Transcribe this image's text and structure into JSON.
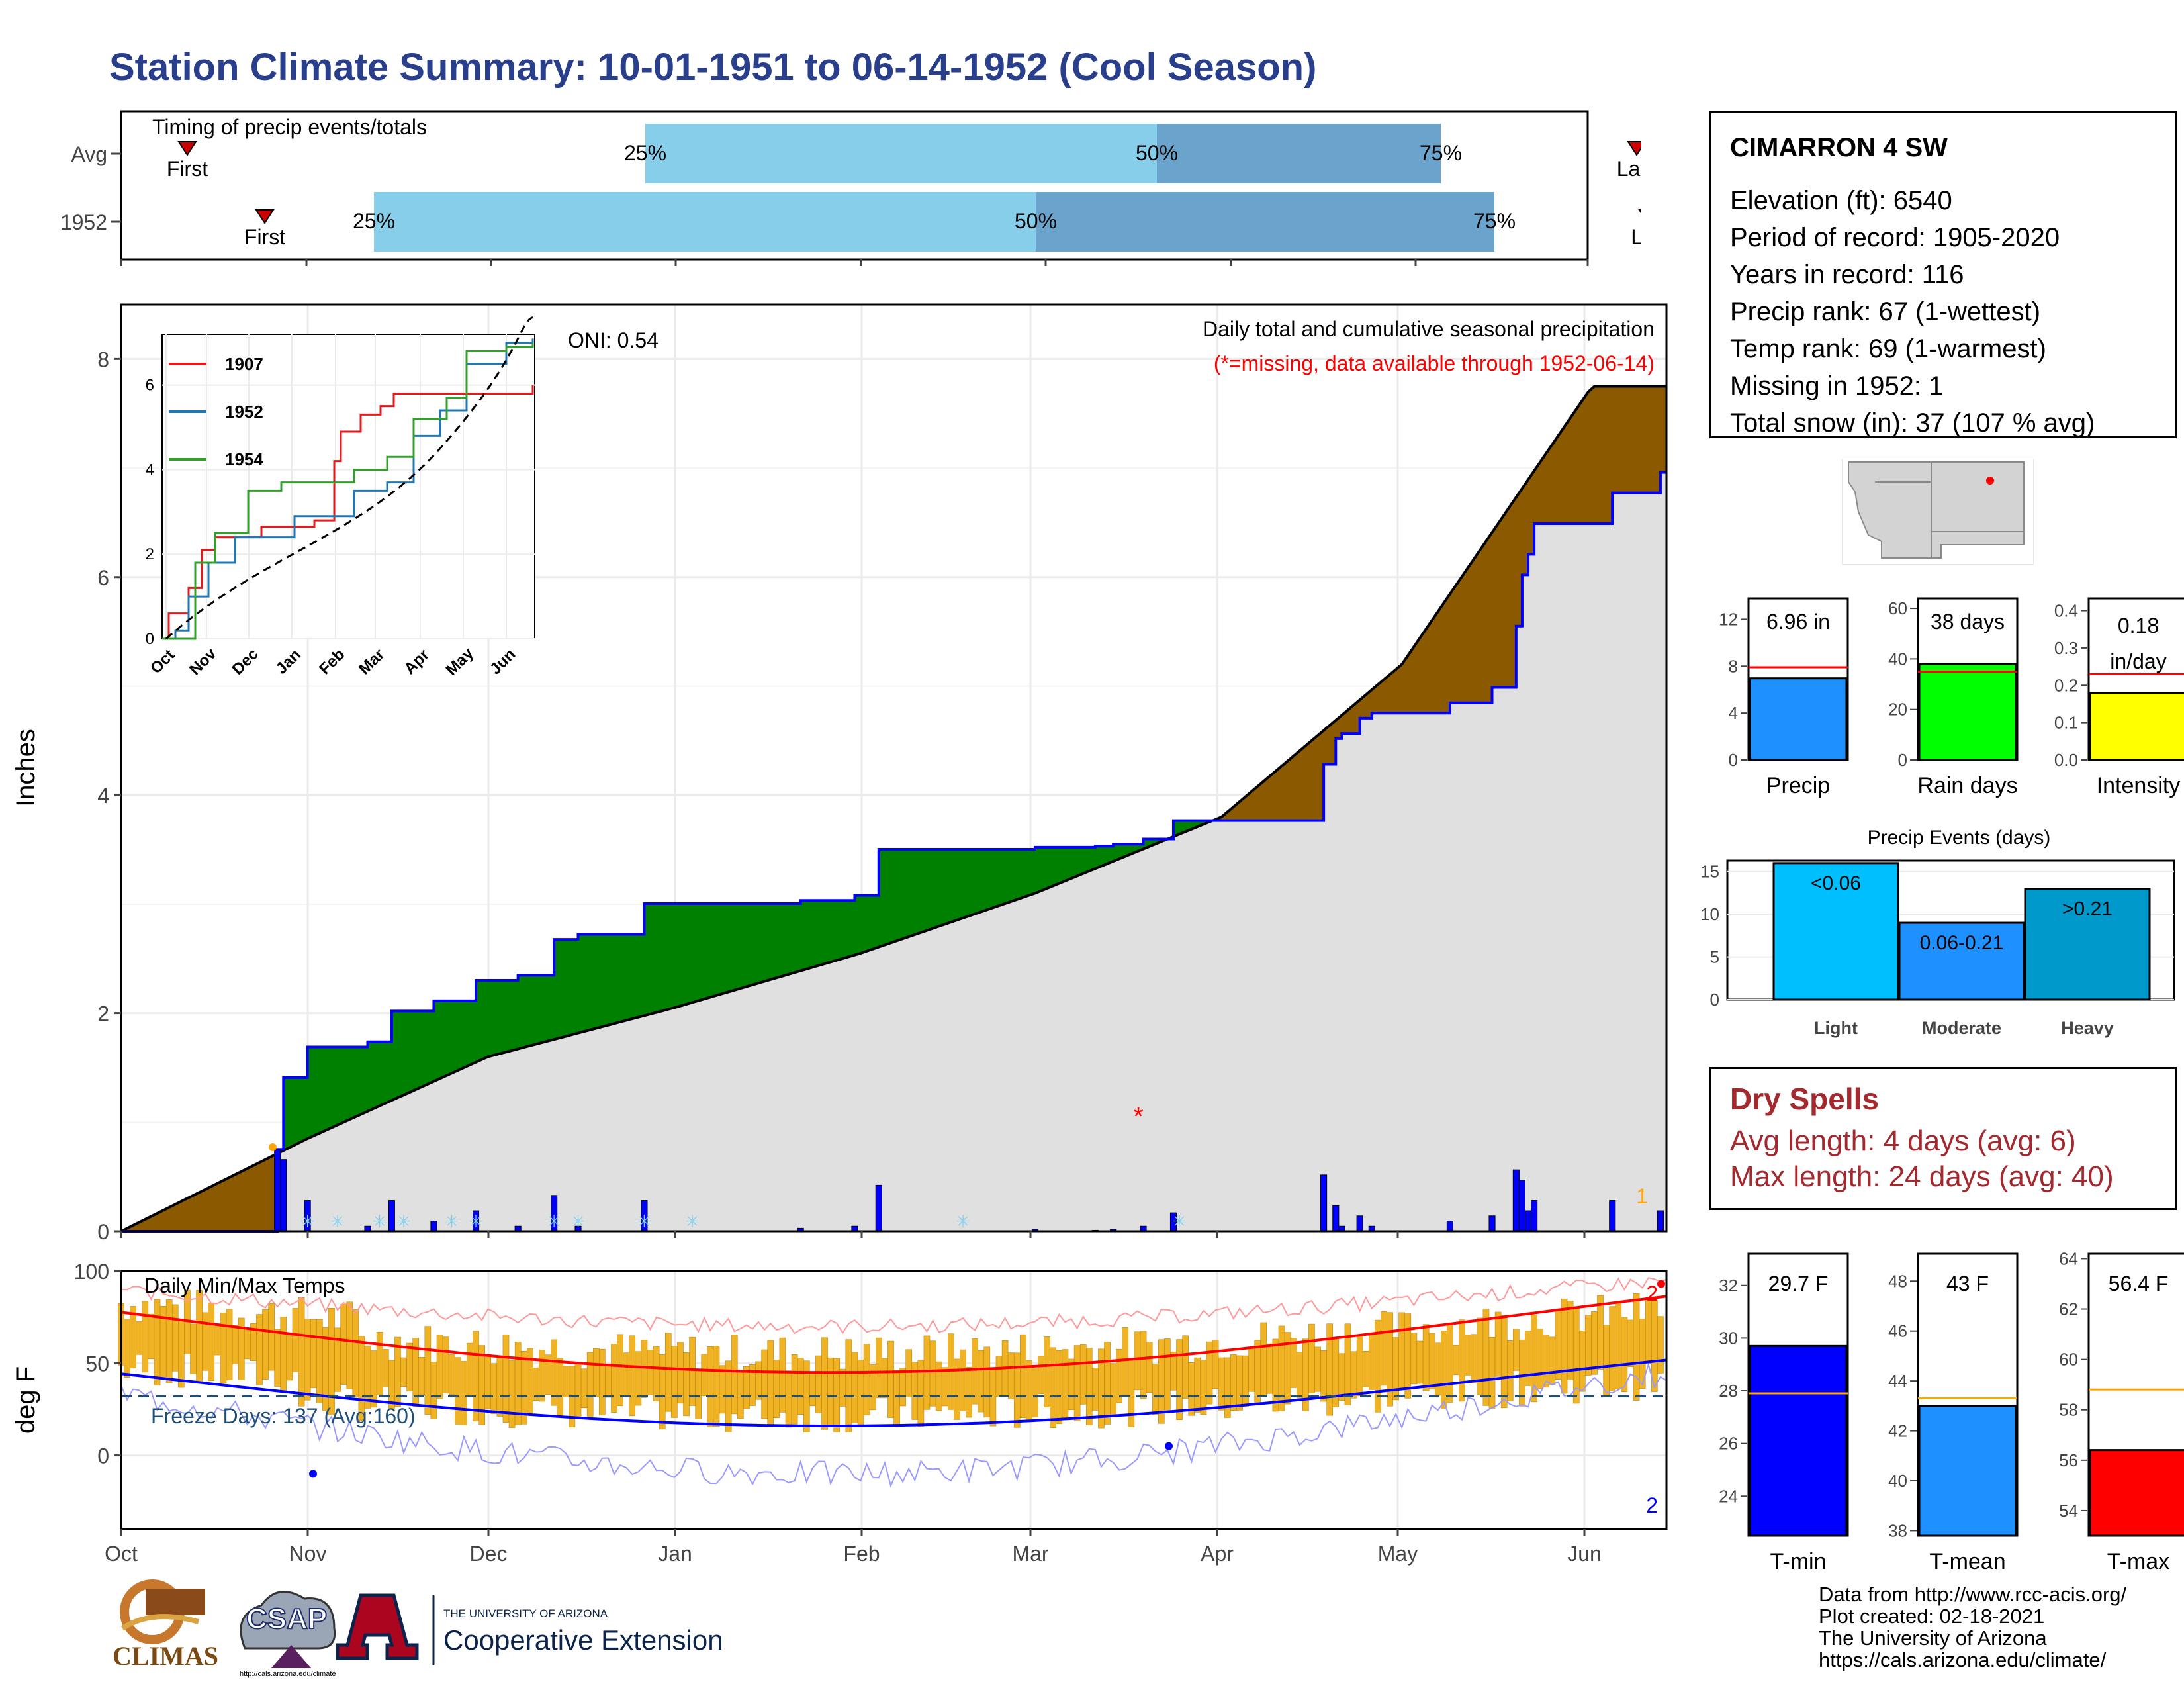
{
  "title": "Station Climate Summary: 10-01-1951 to 06-14-1952 (Cool Season)",
  "timing": {
    "label": "Timing of precip events/totals",
    "rows": [
      {
        "name": "Avg",
        "first": "First",
        "last": "Last",
        "p25": "25%",
        "p50": "50%",
        "p75": "75%"
      },
      {
        "name": "1952",
        "first": "First",
        "last": "Las",
        "p25": "25%",
        "p50": "50%",
        "p75": "75%"
      }
    ]
  },
  "station": {
    "name": "CIMARRON 4 SW",
    "lines": [
      "Elevation (ft): 6540",
      "Period of record: 1905-2020",
      "Years in record: 116",
      "Precip rank: 67 (1-wettest)",
      "Temp rank: 69 (1-warmest)",
      "Missing in 1952: 1",
      "Total snow (in): 37 (107 % avg)"
    ]
  },
  "precip_panel": {
    "title": "Daily total and cumulative seasonal precipitation",
    "note": "(*=missing, data available through 1952-06-14)",
    "oni": "ONI: 0.54",
    "ylabel": "Inches",
    "yticks": [
      "0",
      "2",
      "4",
      "6",
      "8"
    ],
    "corner_count": "1",
    "missing_marker": "*"
  },
  "temp_panel": {
    "title": "Daily Min/Max Temps",
    "freeze": "Freeze Days: 137 (Avg:160)",
    "ylabel": "deg F",
    "yticks": [
      "0",
      "50",
      "100"
    ],
    "corner_top": "2",
    "corner_bottom": "2"
  },
  "months": [
    "Oct",
    "Nov",
    "Dec",
    "Jan",
    "Feb",
    "Mar",
    "Apr",
    "May",
    "Jun"
  ],
  "inset": {
    "months": [
      "Oct",
      "Nov",
      "Dec",
      "Jan",
      "Feb",
      "Mar",
      "Apr",
      "May",
      "Jun"
    ],
    "yticks": [
      "0",
      "2",
      "4",
      "6"
    ],
    "legend": [
      {
        "name": "1907",
        "color": "#e31a1c"
      },
      {
        "name": "1952",
        "color": "#1f78b4"
      },
      {
        "name": "1954",
        "color": "#33a02c"
      }
    ]
  },
  "mini_bars": [
    {
      "label": "Precip",
      "value_text": "6.96 in",
      "ticks": [
        "0",
        "4",
        "8",
        "12"
      ],
      "color": "#1e90ff"
    },
    {
      "label": "Rain days",
      "value_text": "38 days",
      "ticks": [
        "0",
        "20",
        "40",
        "60"
      ],
      "color": "#00ff00"
    },
    {
      "label": "Intensity",
      "value_text_1": "0.18",
      "value_text_2": "in/day",
      "ticks": [
        "0.0",
        "0.1",
        "0.2",
        "0.3",
        "0.4"
      ],
      "color": "#ffff00"
    }
  ],
  "events": {
    "title": "Precip Events (days)",
    "yticks": [
      "0",
      "5",
      "10",
      "15"
    ],
    "categories": [
      "Light",
      "Moderate",
      "Heavy"
    ],
    "labels": [
      "<0.06",
      "0.06-0.21",
      ">0.21"
    ]
  },
  "dry_spells": {
    "title": "Dry Spells",
    "avg": "Avg length: 4 days (avg: 6)",
    "max": "Max length: 24 days (avg: 40)"
  },
  "temp_bars": [
    {
      "label": "T-min",
      "value_text": "29.7 F",
      "ticks": [
        "24",
        "26",
        "28",
        "30",
        "32"
      ],
      "color": "#0000ff"
    },
    {
      "label": "T-mean",
      "value_text": "43 F",
      "ticks": [
        "38",
        "40",
        "42",
        "44",
        "46",
        "48"
      ],
      "color": "#1e90ff"
    },
    {
      "label": "T-max",
      "value_text": "56.4 F",
      "ticks": [
        "54",
        "56",
        "58",
        "60",
        "62",
        "64"
      ],
      "color": "#ff0000"
    }
  ],
  "credits": "Data from http://www.rcc-acis.org/\nPlot created: 02-18-2021\nThe University of Arizona\nhttps://cals.arizona.edu/climate/",
  "logos": {
    "climas": "CLIMAS",
    "csap": "CSAP",
    "csap_url": "http://cals.arizona.edu/climate",
    "ua_line1": "THE UNIVERSITY OF ARIZONA",
    "ua_line2": "Cooperative Extension"
  },
  "colors": {
    "title": "#2a3f8c",
    "above_avg": "#008000",
    "below_avg": "#8b5a00",
    "normal_fill": "#e0e0e0",
    "daily_bar": "#0000ff",
    "temp_bar": "#f0b323",
    "q_light": "#87ceeb",
    "q_dark": "#6aa3cc"
  },
  "chart_data": [
    {
      "type": "line",
      "title": "Daily total and cumulative seasonal precipitation",
      "ylabel": "Inches",
      "ylim": [
        0,
        8.5
      ],
      "x": [
        "Oct",
        "Nov",
        "Dec",
        "Jan",
        "Feb",
        "Mar",
        "Apr",
        "May",
        "Jun"
      ],
      "series": [
        {
          "name": "1952",
          "values": [
            0,
            1.0,
            2.25,
            2.98,
            3.45,
            3.52,
            3.72,
            4.85,
            6.9
          ]
        },
        {
          "values": [
            0,
            0.85,
            1.6,
            2.05,
            2.55,
            3.1,
            3.8,
            5.2,
            7.7
          ]
        }
      ]
    },
    {
      "type": "bar",
      "title": "Precip Events (days)",
      "categories": [
        "Light",
        "Moderate",
        "Heavy"
      ],
      "values": [
        16,
        9,
        13
      ],
      "ylim": [
        0,
        16
      ]
    },
    {
      "type": "bar",
      "categories": [
        "Precip",
        "Rain days",
        "Intensity"
      ],
      "values": [
        6.96,
        38,
        0.18
      ],
      "averages": [
        7.9,
        35,
        0.23
      ]
    },
    {
      "type": "bar",
      "categories": [
        "T-min",
        "T-mean",
        "T-max"
      ],
      "values": [
        29.7,
        43,
        56.4
      ],
      "averages": [
        27.9,
        43.3,
        58.8
      ]
    }
  ]
}
